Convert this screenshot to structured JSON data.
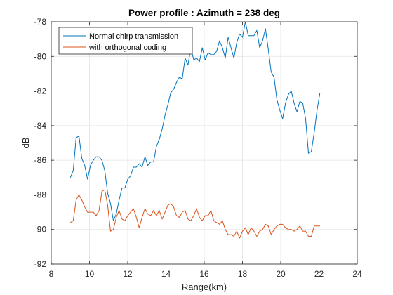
{
  "chart_data": {
    "type": "line",
    "title": "Power profile : Azimuth = 238 deg",
    "xlabel": "Range(km)",
    "ylabel": "dB",
    "xlim": [
      8,
      24
    ],
    "ylim": [
      -92,
      -78
    ],
    "xticks": [
      8,
      10,
      12,
      14,
      16,
      18,
      20,
      22,
      24
    ],
    "yticks": [
      -92,
      -90,
      -88,
      -86,
      -84,
      -82,
      -80,
      -78
    ],
    "grid": true,
    "legend_position": "top-left",
    "series": [
      {
        "name": "Normal chirp transmission",
        "color": "#0072BD",
        "x": [
          9.0,
          9.15,
          9.3,
          9.45,
          9.6,
          9.75,
          9.9,
          10.05,
          10.2,
          10.35,
          10.5,
          10.65,
          10.8,
          10.95,
          11.1,
          11.25,
          11.4,
          11.55,
          11.7,
          11.85,
          12.0,
          12.15,
          12.3,
          12.45,
          12.6,
          12.75,
          12.9,
          13.05,
          13.2,
          13.35,
          13.5,
          13.65,
          13.8,
          13.95,
          14.1,
          14.25,
          14.4,
          14.55,
          14.7,
          14.85,
          15.0,
          15.15,
          15.3,
          15.45,
          15.6,
          15.75,
          15.9,
          16.05,
          16.2,
          16.35,
          16.5,
          16.65,
          16.8,
          16.95,
          17.1,
          17.25,
          17.4,
          17.55,
          17.7,
          17.85,
          18.0,
          18.15,
          18.3,
          18.45,
          18.6,
          18.75,
          18.9,
          19.05,
          19.2,
          19.35,
          19.5,
          19.65,
          19.8,
          19.95,
          20.1,
          20.25,
          20.4,
          20.55,
          20.7,
          20.85,
          21.0,
          21.15,
          21.3,
          21.45,
          21.6,
          21.75,
          21.9,
          22.05
        ],
        "y": [
          -87.0,
          -86.6,
          -84.7,
          -84.6,
          -85.9,
          -86.3,
          -87.1,
          -86.3,
          -86.0,
          -85.8,
          -85.8,
          -86.0,
          -86.6,
          -87.9,
          -88.5,
          -89.5,
          -89.1,
          -88.3,
          -87.6,
          -87.6,
          -87.1,
          -86.9,
          -86.4,
          -86.4,
          -86.2,
          -86.4,
          -85.8,
          -86.3,
          -86.1,
          -86.1,
          -85.2,
          -84.8,
          -84.2,
          -83.4,
          -82.8,
          -82.1,
          -81.9,
          -81.5,
          -81.2,
          -81.3,
          -80.1,
          -80.5,
          -79.5,
          -80.2,
          -80.1,
          -80.3,
          -79.5,
          -80.2,
          -79.8,
          -79.9,
          -79.9,
          -79.7,
          -79.1,
          -79.5,
          -80.1,
          -78.9,
          -79.5,
          -80.1,
          -79.2,
          -78.7,
          -78.9,
          -78.0,
          -78.8,
          -78.8,
          -78.8,
          -78.5,
          -79.5,
          -79.1,
          -78.4,
          -79.6,
          -80.9,
          -81.2,
          -82.5,
          -83.1,
          -83.6,
          -82.7,
          -82.2,
          -82.0,
          -82.7,
          -83.2,
          -82.6,
          -82.7,
          -83.6,
          -85.6,
          -85.5,
          -84.4,
          -83.1,
          -82.1
        ],
        "y_note": ""
      },
      {
        "name": "with orthogonal coding",
        "color": "#D95319",
        "x": [
          9.0,
          9.15,
          9.3,
          9.45,
          9.6,
          9.75,
          9.9,
          10.05,
          10.2,
          10.35,
          10.5,
          10.65,
          10.8,
          10.95,
          11.1,
          11.25,
          11.4,
          11.55,
          11.7,
          11.85,
          12.0,
          12.15,
          12.3,
          12.45,
          12.6,
          12.75,
          12.9,
          13.05,
          13.2,
          13.35,
          13.5,
          13.65,
          13.8,
          13.95,
          14.1,
          14.25,
          14.4,
          14.55,
          14.7,
          14.85,
          15.0,
          15.15,
          15.3,
          15.45,
          15.6,
          15.75,
          15.9,
          16.05,
          16.2,
          16.35,
          16.5,
          16.65,
          16.8,
          16.95,
          17.1,
          17.25,
          17.4,
          17.55,
          17.7,
          17.85,
          18.0,
          18.15,
          18.3,
          18.45,
          18.6,
          18.75,
          18.9,
          19.05,
          19.2,
          19.35,
          19.5,
          19.65,
          19.8,
          19.95,
          20.1,
          20.25,
          20.4,
          20.55,
          20.7,
          20.85,
          21.0,
          21.15,
          21.3,
          21.45,
          21.6,
          21.75,
          21.9,
          22.05
        ],
        "y": [
          -89.6,
          -89.5,
          -88.3,
          -88.0,
          -88.3,
          -88.7,
          -89.0,
          -89.0,
          -89.0,
          -89.2,
          -88.9,
          -87.8,
          -87.7,
          -88.6,
          -90.1,
          -90.0,
          -89.3,
          -88.9,
          -89.4,
          -89.5,
          -89.2,
          -89.0,
          -88.8,
          -89.3,
          -89.9,
          -89.3,
          -88.8,
          -89.1,
          -89.2,
          -88.9,
          -89.2,
          -88.9,
          -89.4,
          -89.0,
          -88.6,
          -88.5,
          -88.7,
          -89.2,
          -89.3,
          -89.0,
          -88.9,
          -89.4,
          -89.5,
          -89.2,
          -88.8,
          -89.3,
          -89.5,
          -89.2,
          -89.2,
          -88.9,
          -89.5,
          -89.6,
          -89.7,
          -89.5,
          -90.0,
          -90.3,
          -90.3,
          -90.4,
          -90.1,
          -90.5,
          -90.1,
          -89.9,
          -90.3,
          -89.9,
          -90.1,
          -90.4,
          -90.1,
          -90.0,
          -89.7,
          -89.8,
          -90.3,
          -90.0,
          -89.8,
          -89.7,
          -89.7,
          -89.9,
          -90.0,
          -90.0,
          -90.1,
          -90.0,
          -89.8,
          -90.1,
          -90.1,
          -90.4,
          -90.4,
          -89.8,
          -89.8,
          -89.8
        ]
      }
    ]
  }
}
